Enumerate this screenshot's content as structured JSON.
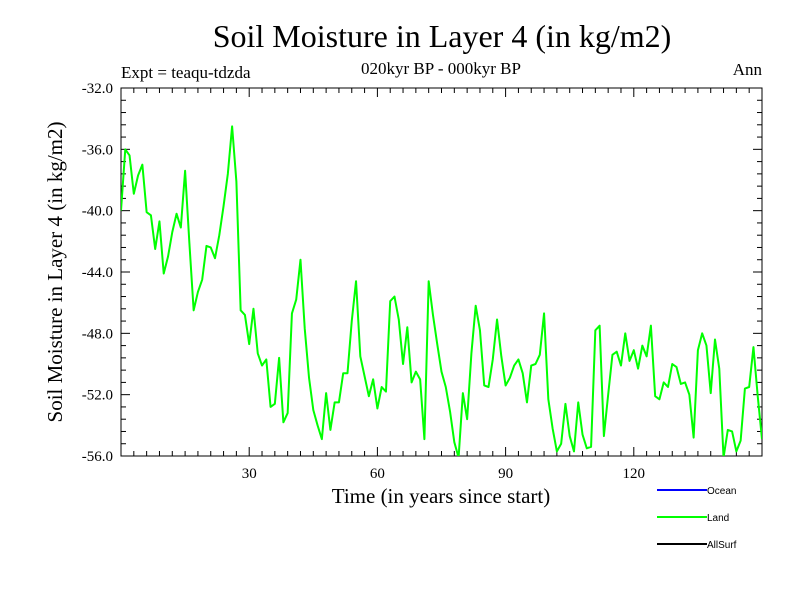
{
  "chart_data": {
    "type": "line",
    "title": "Soil Moisture in Layer 4 (in kg/m2)",
    "subtitle": "020kyr BP - 000kyr BP",
    "expt_label": "Expt = teaqu-tdzda",
    "season_label": "Ann",
    "xlabel": "Time (in years since start)",
    "ylabel": "Soil Moisture in Layer 4 (in kg/m2)",
    "xlim": [
      0,
      150
    ],
    "ylim": [
      -56,
      -32
    ],
    "x_ticks": [
      30,
      60,
      90,
      120
    ],
    "x_tick_labels": [
      "30",
      "60",
      "90",
      "120"
    ],
    "y_ticks": [
      -56,
      -52,
      -48,
      -44,
      -40,
      -36,
      -32
    ],
    "y_tick_labels": [
      "-56.0",
      "-52.0",
      "-48.0",
      "-44.0",
      "-40.0",
      "-36.0",
      "-32.0"
    ],
    "legend": [
      {
        "name": "Ocean",
        "color": "#0000ff"
      },
      {
        "name": "Land",
        "color": "#00ff00"
      },
      {
        "name": "AllSurf",
        "color": "#000000"
      }
    ],
    "series": [
      {
        "name": "Land",
        "color": "#00ff00",
        "x": [
          0,
          1,
          2,
          3,
          4,
          5,
          6,
          7,
          8,
          9,
          10,
          11,
          12,
          13,
          14,
          15,
          16,
          17,
          18,
          19,
          20,
          21,
          22,
          23,
          24,
          25,
          26,
          27,
          28,
          29,
          30,
          31,
          32,
          33,
          34,
          35,
          36,
          37,
          38,
          39,
          40,
          41,
          42,
          43,
          44,
          45,
          46,
          47,
          48,
          49,
          50,
          51,
          52,
          53,
          54,
          55,
          56,
          57,
          58,
          59,
          60,
          61,
          62,
          63,
          64,
          65,
          66,
          67,
          68,
          69,
          70,
          71,
          72,
          73,
          74,
          75,
          76,
          77,
          78,
          79,
          80,
          81,
          82,
          83,
          84,
          85,
          86,
          87,
          88,
          89,
          90,
          91,
          92,
          93,
          94,
          95,
          96,
          97,
          98,
          99,
          100,
          101,
          102,
          103,
          104,
          105,
          106,
          107,
          108,
          109,
          110,
          111,
          112,
          113,
          114,
          115,
          116,
          117,
          118,
          119,
          120,
          121,
          122,
          123,
          124,
          125,
          126,
          127,
          128,
          129,
          130,
          131,
          132,
          133,
          134,
          135,
          136,
          137,
          138,
          139,
          140,
          141,
          142,
          143,
          144,
          145,
          146,
          147,
          148,
          149,
          150
        ],
        "values": [
          -40.0,
          -36.0,
          -36.4,
          -38.9,
          -37.7,
          -37.0,
          -40.1,
          -40.3,
          -42.5,
          -40.7,
          -44.1,
          -43.0,
          -41.4,
          -40.2,
          -41.1,
          -37.4,
          -42.1,
          -46.5,
          -45.3,
          -44.5,
          -42.3,
          -42.4,
          -43.1,
          -41.6,
          -39.7,
          -37.6,
          -34.5,
          -38.1,
          -46.5,
          -46.8,
          -48.7,
          -46.4,
          -49.3,
          -50.1,
          -49.7,
          -52.8,
          -52.6,
          -49.6,
          -53.8,
          -53.2,
          -46.7,
          -45.8,
          -43.2,
          -47.7,
          -50.9,
          -53.0,
          -54.0,
          -54.9,
          -51.9,
          -54.3,
          -52.5,
          -52.5,
          -50.6,
          -50.6,
          -47.2,
          -44.6,
          -49.5,
          -50.8,
          -52.1,
          -51.0,
          -52.9,
          -51.5,
          -51.8,
          -45.9,
          -45.6,
          -47.1,
          -50.0,
          -47.6,
          -51.2,
          -50.5,
          -51.0,
          -54.9,
          -44.6,
          -46.8,
          -48.7,
          -50.5,
          -51.5,
          -53.1,
          -55.1,
          -56.1,
          -51.9,
          -53.6,
          -49.3,
          -46.2,
          -47.8,
          -51.4,
          -51.5,
          -49.7,
          -47.1,
          -49.5,
          -51.4,
          -50.9,
          -50.1,
          -49.7,
          -50.6,
          -52.5,
          -50.1,
          -50.0,
          -49.4,
          -46.7,
          -52.3,
          -54.2,
          -55.7,
          -55.2,
          -52.6,
          -54.7,
          -55.7,
          -52.5,
          -54.6,
          -55.5,
          -55.4,
          -47.8,
          -47.5,
          -54.7,
          -52.0,
          -49.4,
          -49.2,
          -50.1,
          -48.0,
          -49.8,
          -49.1,
          -50.3,
          -48.8,
          -49.5,
          -47.5,
          -52.1,
          -52.3,
          -51.2,
          -51.5,
          -50.0,
          -50.2,
          -51.3,
          -51.2,
          -52.0,
          -54.8,
          -49.1,
          -48.0,
          -48.8,
          -51.9,
          -48.4,
          -50.3,
          -56.1,
          -54.3,
          -54.4,
          -55.7,
          -55.0,
          -51.6,
          -51.5,
          -48.9,
          -52.1,
          -54.9
        ]
      }
    ]
  }
}
